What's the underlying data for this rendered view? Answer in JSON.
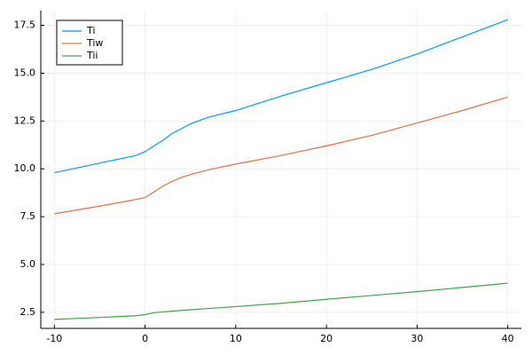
{
  "chart_data": {
    "type": "line",
    "x": [
      -10,
      -5,
      -1,
      0,
      1,
      2,
      3,
      4,
      5,
      7,
      10,
      15,
      20,
      25,
      30,
      35,
      40
    ],
    "series": [
      {
        "name": "Ti",
        "color": "#009af9",
        "values": [
          9.8,
          10.3,
          10.7,
          10.9,
          11.2,
          11.5,
          11.85,
          12.1,
          12.35,
          12.7,
          13.05,
          13.8,
          14.5,
          15.2,
          16.0,
          16.9,
          17.8
        ]
      },
      {
        "name": "Tiw",
        "color": "#e26f46",
        "values": [
          7.65,
          8.05,
          8.4,
          8.5,
          8.8,
          9.1,
          9.35,
          9.55,
          9.7,
          9.95,
          10.25,
          10.7,
          11.2,
          11.75,
          12.4,
          13.05,
          13.75
        ]
      },
      {
        "name": "Tii",
        "color": "#3ea44e",
        "values": [
          2.13,
          2.23,
          2.32,
          2.38,
          2.48,
          2.52,
          2.56,
          2.6,
          2.63,
          2.7,
          2.8,
          2.97,
          3.18,
          3.38,
          3.58,
          3.8,
          4.02
        ]
      }
    ],
    "xlim": [
      -11.5,
      41.5
    ],
    "xticks": [
      -10,
      0,
      10,
      20,
      30,
      40
    ],
    "ylim": [
      1.66,
      18.27
    ],
    "yticks": [
      {
        "value": 2.5,
        "label": "2.5"
      },
      {
        "value": 5,
        "label": "5.0"
      },
      {
        "value": 7.5,
        "label": "7.5"
      },
      {
        "value": 10,
        "label": "10.0"
      },
      {
        "value": 12.5,
        "label": "12.5"
      },
      {
        "value": 15,
        "label": "15.0"
      },
      {
        "value": 17.5,
        "label": "17.5"
      }
    ],
    "grid": true,
    "legend": "top-left"
  }
}
